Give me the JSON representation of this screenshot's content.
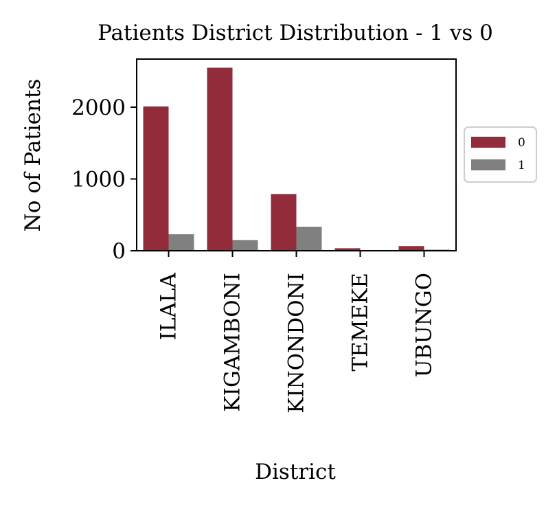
{
  "chart_data": {
    "type": "bar",
    "title": "Patients District Distribution - 1 vs 0",
    "xlabel": "District",
    "ylabel": "No of Patients",
    "categories": [
      "ILALA",
      "KIGAMBONI",
      "KINONDONI",
      "TEMEKE",
      "UBUNGO"
    ],
    "series": [
      {
        "name": "0",
        "color": "#922b3a",
        "values": [
          2010,
          2550,
          790,
          35,
          65
        ]
      },
      {
        "name": "1",
        "color": "#808080",
        "values": [
          230,
          150,
          335,
          5,
          15
        ]
      }
    ],
    "ylim": [
      0,
      2670
    ],
    "yticks": [
      0,
      1000,
      2000
    ],
    "ytick_labels": [
      "0",
      "1000",
      "2000"
    ],
    "grid": false,
    "legend_position": "right"
  }
}
